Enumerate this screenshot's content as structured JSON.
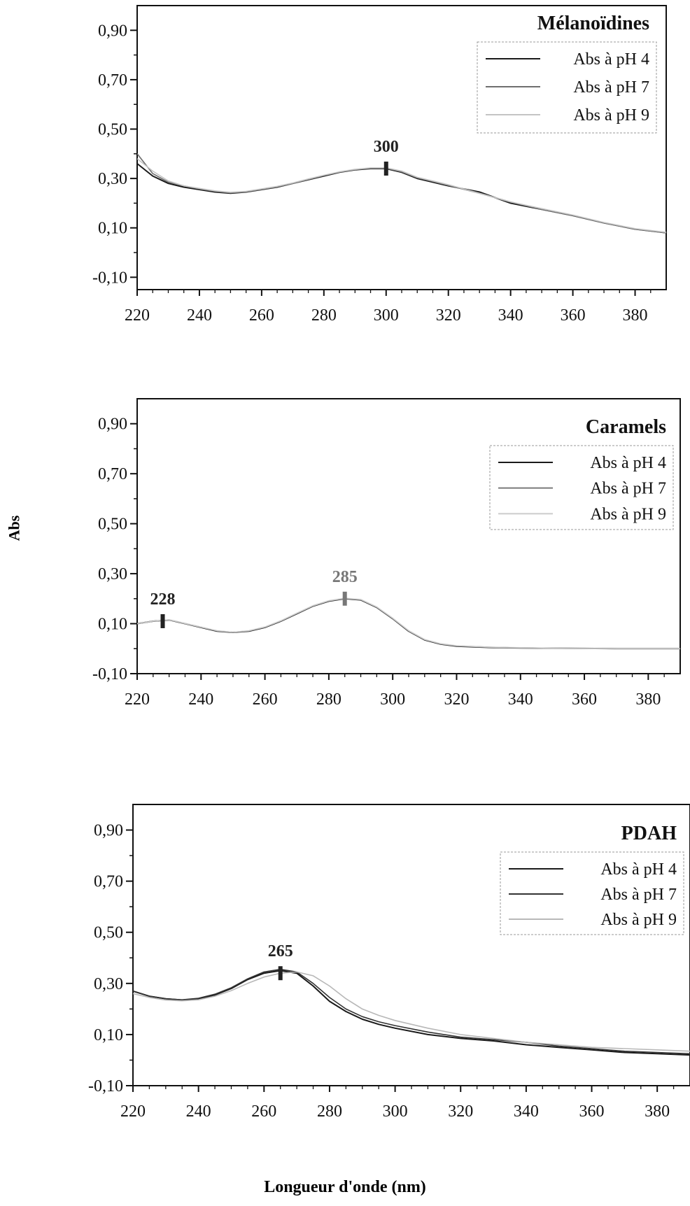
{
  "figure": {
    "ylabel": "Abs",
    "xlabel": "Longueur d'onde (nm)"
  },
  "chart_data": [
    {
      "type": "line",
      "title": "Mélanoïdines",
      "xlim": [
        220,
        390
      ],
      "ylim": [
        -0.15,
        1.0
      ],
      "xticks": [
        220,
        240,
        260,
        280,
        300,
        320,
        340,
        360,
        380
      ],
      "yticks": [
        -0.1,
        0.1,
        0.3,
        0.5,
        0.7,
        0.9
      ],
      "ytick_labels": [
        "-0,10",
        "0,10",
        "0,30",
        "0,50",
        "0,70",
        "0,90"
      ],
      "legend_position": "top-right",
      "peak_markers": [
        {
          "x": 300,
          "y": 0.34,
          "label": "300",
          "color": "#222222"
        }
      ],
      "series": [
        {
          "name": "Abs à pH 4",
          "color": "#1a1a1a",
          "x": [
            220,
            225,
            230,
            235,
            240,
            245,
            250,
            255,
            260,
            265,
            270,
            275,
            280,
            285,
            290,
            295,
            300,
            305,
            310,
            315,
            320,
            330,
            340,
            350,
            360,
            370,
            380,
            390
          ],
          "y": [
            0.36,
            0.31,
            0.28,
            0.265,
            0.255,
            0.245,
            0.24,
            0.245,
            0.255,
            0.265,
            0.28,
            0.295,
            0.31,
            0.325,
            0.335,
            0.34,
            0.34,
            0.325,
            0.3,
            0.285,
            0.27,
            0.245,
            0.2,
            0.175,
            0.15,
            0.12,
            0.095,
            0.08
          ]
        },
        {
          "name": "Abs à pH 7",
          "color": "#6e6e6e",
          "x": [
            220,
            225,
            230,
            235,
            240,
            245,
            250,
            255,
            260,
            265,
            270,
            275,
            280,
            285,
            290,
            295,
            300,
            305,
            310,
            315,
            320,
            330,
            340,
            350,
            360,
            370,
            380,
            390
          ],
          "y": [
            0.4,
            0.32,
            0.285,
            0.27,
            0.258,
            0.248,
            0.242,
            0.246,
            0.256,
            0.266,
            0.28,
            0.296,
            0.312,
            0.326,
            0.336,
            0.342,
            0.342,
            0.327,
            0.303,
            0.288,
            0.272,
            0.24,
            0.205,
            0.175,
            0.15,
            0.12,
            0.095,
            0.08
          ]
        },
        {
          "name": "Abs à pH 9",
          "color": "#c4c4c4",
          "x": [
            220,
            225,
            230,
            235,
            240,
            245,
            250,
            255,
            260,
            265,
            270,
            275,
            280,
            285,
            290,
            295,
            300,
            305,
            310,
            315,
            320,
            330,
            340,
            350,
            360,
            370,
            380,
            390
          ],
          "y": [
            0.38,
            0.33,
            0.29,
            0.27,
            0.26,
            0.25,
            0.244,
            0.248,
            0.258,
            0.268,
            0.282,
            0.298,
            0.313,
            0.327,
            0.337,
            0.343,
            0.343,
            0.33,
            0.305,
            0.29,
            0.275,
            0.24,
            0.205,
            0.178,
            0.152,
            0.122,
            0.097,
            0.082
          ]
        }
      ]
    },
    {
      "type": "line",
      "title": "Caramels",
      "xlim": [
        220,
        390
      ],
      "ylim": [
        -0.1,
        1.0
      ],
      "xticks": [
        220,
        240,
        260,
        280,
        300,
        320,
        340,
        360,
        380
      ],
      "yticks": [
        -0.1,
        0.1,
        0.3,
        0.5,
        0.7,
        0.9
      ],
      "ytick_labels": [
        "-0,10",
        "0,10",
        "0,30",
        "0,50",
        "0,70",
        "0,90"
      ],
      "legend_position": "top-right",
      "peak_markers": [
        {
          "x": 228,
          "y": 0.11,
          "label": "228",
          "color": "#222222"
        },
        {
          "x": 285,
          "y": 0.2,
          "label": "285",
          "color": "#777777"
        }
      ],
      "series": [
        {
          "name": "Abs à pH 4",
          "color": "#1a1a1a",
          "x": [
            220,
            225,
            230,
            235,
            240,
            245,
            250,
            255,
            260,
            265,
            270,
            275,
            280,
            285,
            290,
            295,
            300,
            305,
            310,
            315,
            320,
            330,
            340,
            350,
            360,
            370,
            380,
            390
          ],
          "y": [
            0.1,
            0.11,
            0.115,
            0.1,
            0.085,
            0.07,
            0.065,
            0.07,
            0.085,
            0.11,
            0.14,
            0.17,
            0.19,
            0.2,
            0.195,
            0.165,
            0.12,
            0.07,
            0.035,
            0.018,
            0.01,
            0.005,
            0.003,
            0.002,
            0.001,
            0.0,
            0.0,
            0.0
          ]
        },
        {
          "name": "Abs à pH 7",
          "color": "#7a7a7a",
          "x": [
            220,
            225,
            230,
            235,
            240,
            245,
            250,
            255,
            260,
            265,
            270,
            275,
            280,
            285,
            290,
            295,
            300,
            305,
            310,
            315,
            320,
            330,
            340,
            350,
            360,
            370,
            380,
            390
          ],
          "y": [
            0.1,
            0.11,
            0.115,
            0.1,
            0.086,
            0.071,
            0.066,
            0.071,
            0.086,
            0.111,
            0.141,
            0.171,
            0.191,
            0.201,
            0.196,
            0.166,
            0.121,
            0.071,
            0.036,
            0.019,
            0.011,
            0.006,
            0.003,
            0.002,
            0.001,
            0.0,
            0.0,
            0.0
          ]
        },
        {
          "name": "Abs à pH 9",
          "color": "#cccccc",
          "x": [
            220,
            225,
            230,
            235,
            240,
            245,
            250,
            255,
            260,
            265,
            270,
            275,
            280,
            285,
            290,
            295,
            300,
            305,
            310,
            315,
            320,
            330,
            340,
            350,
            360,
            370,
            380,
            390
          ],
          "y": [
            0.1,
            0.11,
            0.116,
            0.101,
            0.086,
            0.072,
            0.066,
            0.072,
            0.087,
            0.112,
            0.142,
            0.172,
            0.192,
            0.202,
            0.197,
            0.167,
            0.122,
            0.072,
            0.037,
            0.02,
            0.012,
            0.006,
            0.004,
            0.002,
            0.001,
            0.0,
            0.0,
            0.0
          ]
        }
      ]
    },
    {
      "type": "line",
      "title": "PDAH",
      "xlim": [
        220,
        390
      ],
      "ylim": [
        -0.1,
        1.0
      ],
      "xticks": [
        220,
        240,
        260,
        280,
        300,
        320,
        340,
        360,
        380
      ],
      "yticks": [
        -0.1,
        0.1,
        0.3,
        0.5,
        0.7,
        0.9
      ],
      "ytick_labels": [
        "-0,10",
        "0,10",
        "0,30",
        "0,50",
        "0,70",
        "0,90"
      ],
      "legend_position": "top-right",
      "peak_markers": [
        {
          "x": 265,
          "y": 0.34,
          "label": "265",
          "color": "#222222"
        }
      ],
      "series": [
        {
          "name": "Abs à pH 4",
          "color": "#1a1a1a",
          "x": [
            220,
            225,
            230,
            235,
            240,
            245,
            250,
            255,
            260,
            265,
            270,
            275,
            280,
            285,
            290,
            295,
            300,
            310,
            320,
            330,
            340,
            350,
            360,
            370,
            380,
            390
          ],
          "y": [
            0.27,
            0.25,
            0.24,
            0.235,
            0.24,
            0.255,
            0.28,
            0.315,
            0.34,
            0.35,
            0.34,
            0.29,
            0.23,
            0.19,
            0.16,
            0.14,
            0.125,
            0.1,
            0.085,
            0.075,
            0.06,
            0.05,
            0.04,
            0.03,
            0.025,
            0.02
          ]
        },
        {
          "name": "Abs à pH 7",
          "color": "#333333",
          "x": [
            220,
            225,
            230,
            235,
            240,
            245,
            250,
            255,
            260,
            265,
            270,
            275,
            280,
            285,
            290,
            295,
            300,
            310,
            320,
            330,
            340,
            350,
            360,
            370,
            380,
            390
          ],
          "y": [
            0.27,
            0.25,
            0.24,
            0.236,
            0.242,
            0.258,
            0.283,
            0.318,
            0.345,
            0.355,
            0.345,
            0.3,
            0.245,
            0.2,
            0.17,
            0.15,
            0.135,
            0.11,
            0.09,
            0.08,
            0.07,
            0.055,
            0.045,
            0.035,
            0.03,
            0.025
          ]
        },
        {
          "name": "Abs à pH 9",
          "color": "#b8b8b8",
          "x": [
            220,
            225,
            230,
            235,
            240,
            245,
            250,
            255,
            260,
            265,
            270,
            275,
            280,
            285,
            290,
            295,
            300,
            310,
            320,
            330,
            340,
            350,
            360,
            370,
            380,
            390
          ],
          "y": [
            0.26,
            0.245,
            0.235,
            0.232,
            0.236,
            0.25,
            0.272,
            0.3,
            0.325,
            0.34,
            0.345,
            0.33,
            0.29,
            0.24,
            0.2,
            0.175,
            0.155,
            0.125,
            0.1,
            0.085,
            0.07,
            0.06,
            0.05,
            0.045,
            0.04,
            0.035
          ]
        }
      ]
    }
  ]
}
